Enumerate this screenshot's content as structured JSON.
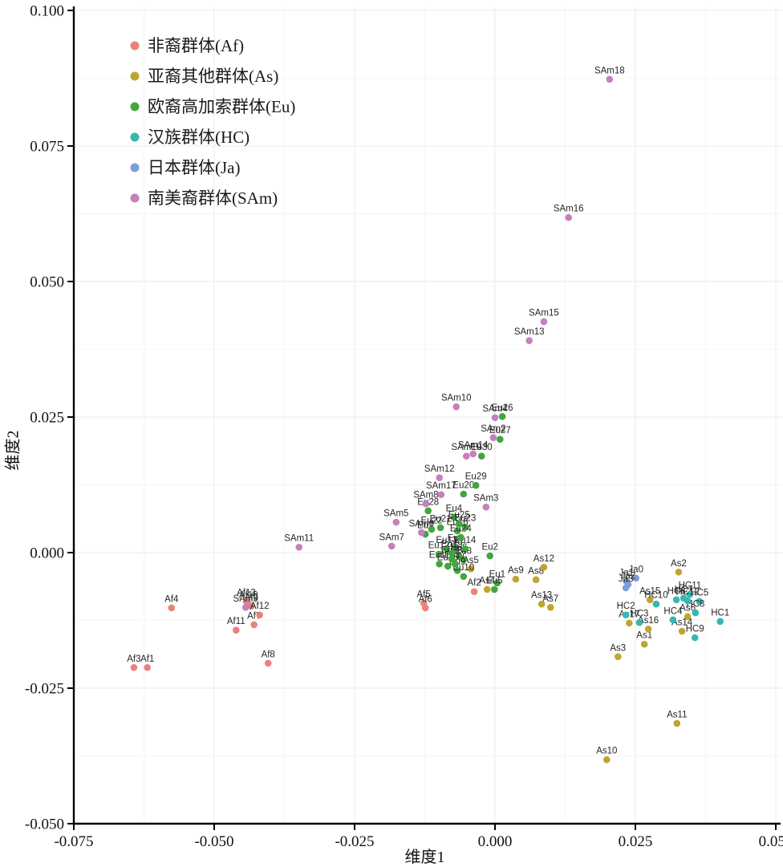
{
  "chart_data": {
    "type": "scatter",
    "title": "",
    "xlabel": "维度1",
    "ylabel": "维度2",
    "xlim": [
      -0.075,
      0.05
    ],
    "ylim": [
      -0.05,
      0.1
    ],
    "x_ticks": [
      -0.075,
      -0.05,
      -0.025,
      0.0,
      0.025,
      0.05
    ],
    "x_tick_labels": [
      "-0.075",
      "-0.050",
      "-0.025",
      "0.000",
      "0.025",
      "0.050"
    ],
    "y_ticks": [
      0.1,
      0.075,
      0.05,
      0.025,
      0.0,
      -0.025,
      -0.05
    ],
    "y_tick_labels": [
      "0.100",
      "0.075",
      "0.050",
      "0.025",
      "0.000",
      "-0.025",
      "-0.050"
    ],
    "grid": {
      "major_color": "#ebebeb",
      "minor_color": "#f5f5f5",
      "on": true
    },
    "axis_color": "#000000",
    "point_label_color": "#262626",
    "legend_position": "top-left-inside",
    "series": [
      {
        "name": "非裔群体(Af)",
        "code": "Af",
        "color": "#E8837B",
        "points": [
          {
            "label": "Af1",
            "x": -0.0619,
            "y": -0.0212
          },
          {
            "label": "Af2",
            "x": -0.0037,
            "y": -0.0072
          },
          {
            "label": "Af3",
            "x": -0.0643,
            "y": -0.0212
          },
          {
            "label": "Af4",
            "x": -0.0576,
            "y": -0.0102
          },
          {
            "label": "Af5",
            "x": -0.0127,
            "y": -0.0093
          },
          {
            "label": "Af6",
            "x": -0.0124,
            "y": -0.0102
          },
          {
            "label": "Af7",
            "x": -0.0429,
            "y": -0.0133
          },
          {
            "label": "Af8",
            "x": -0.0404,
            "y": -0.0204
          },
          {
            "label": "Af9",
            "x": -0.0434,
            "y": -0.0099
          },
          {
            "label": "Af10",
            "x": -0.0439,
            "y": -0.0095
          },
          {
            "label": "Af11",
            "x": -0.0461,
            "y": -0.0143
          },
          {
            "label": "Af12",
            "x": -0.0419,
            "y": -0.0115
          },
          {
            "label": "Af13",
            "x": -0.0443,
            "y": -0.009
          }
        ]
      },
      {
        "name": "亚裔其他群体(As)",
        "code": "As",
        "color": "#BFA52F",
        "points": [
          {
            "label": "As1",
            "x": 0.0266,
            "y": -0.0169
          },
          {
            "label": "As2",
            "x": 0.0327,
            "y": -0.0036
          },
          {
            "label": "As3",
            "x": 0.0219,
            "y": -0.0192
          },
          {
            "label": "As4",
            "x": -0.0014,
            "y": -0.0068
          },
          {
            "label": "As5",
            "x": -0.0043,
            "y": -0.003
          },
          {
            "label": "As6",
            "x": 0.0343,
            "y": -0.0118
          },
          {
            "label": "As7",
            "x": 0.0099,
            "y": -0.0101
          },
          {
            "label": "As8",
            "x": 0.0073,
            "y": -0.005
          },
          {
            "label": "As9",
            "x": 0.0037,
            "y": -0.0049
          },
          {
            "label": "As10",
            "x": 0.0199,
            "y": -0.0382
          },
          {
            "label": "As11",
            "x": 0.0324,
            "y": -0.0315
          },
          {
            "label": "As12",
            "x": 0.0087,
            "y": -0.0027
          },
          {
            "label": "As13",
            "x": 0.0083,
            "y": -0.0095
          },
          {
            "label": "As14",
            "x": 0.0333,
            "y": -0.0145
          },
          {
            "label": "As15",
            "x": 0.0276,
            "y": -0.0087
          },
          {
            "label": "As16",
            "x": 0.0273,
            "y": -0.0141
          },
          {
            "label": "As17",
            "x": 0.0239,
            "y": -0.013
          }
        ]
      },
      {
        "name": "欧裔高加索群体(Eu)",
        "code": "Eu",
        "color": "#41A63D",
        "points": [
          {
            "label": "Eu1",
            "x": 0.0004,
            "y": -0.0056
          },
          {
            "label": "Eu2",
            "x": -0.0009,
            "y": -0.0006
          },
          {
            "label": "Eu3",
            "x": -0.007,
            "y": 0.001
          },
          {
            "label": "Eu4",
            "x": -0.0073,
            "y": 0.0065
          },
          {
            "label": "Eu5",
            "x": -0.0001,
            "y": -0.0068
          },
          {
            "label": "Eu6",
            "x": -0.0064,
            "y": -0.0007
          },
          {
            "label": "Eu7",
            "x": -0.0124,
            "y": 0.0034
          },
          {
            "label": "Eu8",
            "x": -0.0056,
            "y": -0.0013
          },
          {
            "label": "Eu9",
            "x": -0.0067,
            "y": -0.0033
          },
          {
            "label": "Eu10",
            "x": -0.0056,
            "y": -0.0044
          },
          {
            "label": "Eu11",
            "x": -0.0099,
            "y": -0.0021
          },
          {
            "label": "Eu12",
            "x": -0.01,
            "y": -0.0003
          },
          {
            "label": "Eu13",
            "x": -0.0086,
            "y": 0.0007
          },
          {
            "label": "Eu14",
            "x": -0.0053,
            "y": 0.0007
          },
          {
            "label": "Eu15",
            "x": -0.0084,
            "y": -0.0025
          },
          {
            "label": "Eu16",
            "x": -0.0067,
            "y": 0.004
          },
          {
            "label": "Eu17",
            "x": -0.0071,
            "y": -0.0021
          },
          {
            "label": "Eu18",
            "x": -0.0077,
            "y": -0.0012
          },
          {
            "label": "Eu19",
            "x": -0.0077,
            "y": -0.0001
          },
          {
            "label": "Eu20",
            "x": -0.0056,
            "y": 0.0108
          },
          {
            "label": "Eu21",
            "x": -0.0097,
            "y": 0.0046
          },
          {
            "label": "Eu22",
            "x": -0.0113,
            "y": 0.0043
          },
          {
            "label": "Eu23",
            "x": -0.0053,
            "y": 0.0047
          },
          {
            "label": "Eu24",
            "x": -0.0061,
            "y": 0.0028
          },
          {
            "label": "Eu25",
            "x": -0.0064,
            "y": 0.0053
          },
          {
            "label": "Eu26",
            "x": 0.0013,
            "y": 0.0251
          },
          {
            "label": "Eu27",
            "x": 0.0009,
            "y": 0.0209
          },
          {
            "label": "Eu28",
            "x": -0.0119,
            "y": 0.0077
          },
          {
            "label": "Eu29",
            "x": -0.0034,
            "y": 0.0124
          },
          {
            "label": "Eu30",
            "x": -0.0024,
            "y": 0.0178
          }
        ]
      },
      {
        "name": "汉族群体(HC)",
        "code": "HC",
        "color": "#35B7B3",
        "points": [
          {
            "label": "HC1",
            "x": 0.0401,
            "y": -0.0127
          },
          {
            "label": "HC2",
            "x": 0.0233,
            "y": -0.0115
          },
          {
            "label": "HC3",
            "x": 0.0257,
            "y": -0.0129
          },
          {
            "label": "HC4",
            "x": 0.0317,
            "y": -0.0124
          },
          {
            "label": "HC5",
            "x": 0.0364,
            "y": -0.009
          },
          {
            "label": "HC6",
            "x": 0.0323,
            "y": -0.0087
          },
          {
            "label": "HC7",
            "x": 0.0336,
            "y": -0.0084
          },
          {
            "label": "HC8",
            "x": 0.0357,
            "y": -0.0111
          },
          {
            "label": "HC9",
            "x": 0.0356,
            "y": -0.0157
          },
          {
            "label": "HC10",
            "x": 0.0287,
            "y": -0.0095
          },
          {
            "label": "HC11",
            "x": 0.0347,
            "y": -0.0077
          },
          {
            "label": "HC12",
            "x": 0.0343,
            "y": -0.0089
          }
        ]
      },
      {
        "name": "日本群体(Ja)",
        "code": "Ja",
        "color": "#7C9ED8",
        "points": [
          {
            "label": "Ja0",
            "x": 0.0251,
            "y": -0.0047
          },
          {
            "label": "Ja1",
            "x": 0.0234,
            "y": -0.0053
          },
          {
            "label": "Ja2",
            "x": 0.0237,
            "y": -0.0059
          },
          {
            "label": "Ja3",
            "x": 0.0233,
            "y": -0.0065
          }
        ]
      },
      {
        "name": "南美裔群体(SAm)",
        "code": "SAm",
        "color": "#C67FBF",
        "points": [
          {
            "label": "SAm2",
            "x": -0.0003,
            "y": 0.0212
          },
          {
            "label": "SAm3",
            "x": -0.0016,
            "y": 0.0084
          },
          {
            "label": "SAm4",
            "x": 0.0,
            "y": 0.0249
          },
          {
            "label": "SAm5",
            "x": -0.0176,
            "y": 0.0056
          },
          {
            "label": "SAm6",
            "x": -0.0131,
            "y": 0.0037
          },
          {
            "label": "SAm7",
            "x": -0.0184,
            "y": 0.0012
          },
          {
            "label": "SAm8",
            "x": -0.0123,
            "y": 0.009
          },
          {
            "label": "SAm9",
            "x": -0.0444,
            "y": -0.0101
          },
          {
            "label": "SAm10",
            "x": -0.0069,
            "y": 0.0269
          },
          {
            "label": "SAm11",
            "x": -0.0349,
            "y": 0.001
          },
          {
            "label": "SAm12",
            "x": -0.0099,
            "y": 0.0138
          },
          {
            "label": "SAm13",
            "x": 0.0061,
            "y": 0.0391
          },
          {
            "label": "SAm14",
            "x": -0.0039,
            "y": 0.0182
          },
          {
            "label": "SAm15",
            "x": 0.0087,
            "y": 0.0426
          },
          {
            "label": "SAm16",
            "x": 0.0131,
            "y": 0.0618
          },
          {
            "label": "SAm17",
            "x": -0.0096,
            "y": 0.0107
          },
          {
            "label": "SAm18",
            "x": 0.0204,
            "y": 0.0873
          },
          {
            "label": "SAm19",
            "x": -0.0051,
            "y": 0.0178
          }
        ]
      }
    ]
  }
}
